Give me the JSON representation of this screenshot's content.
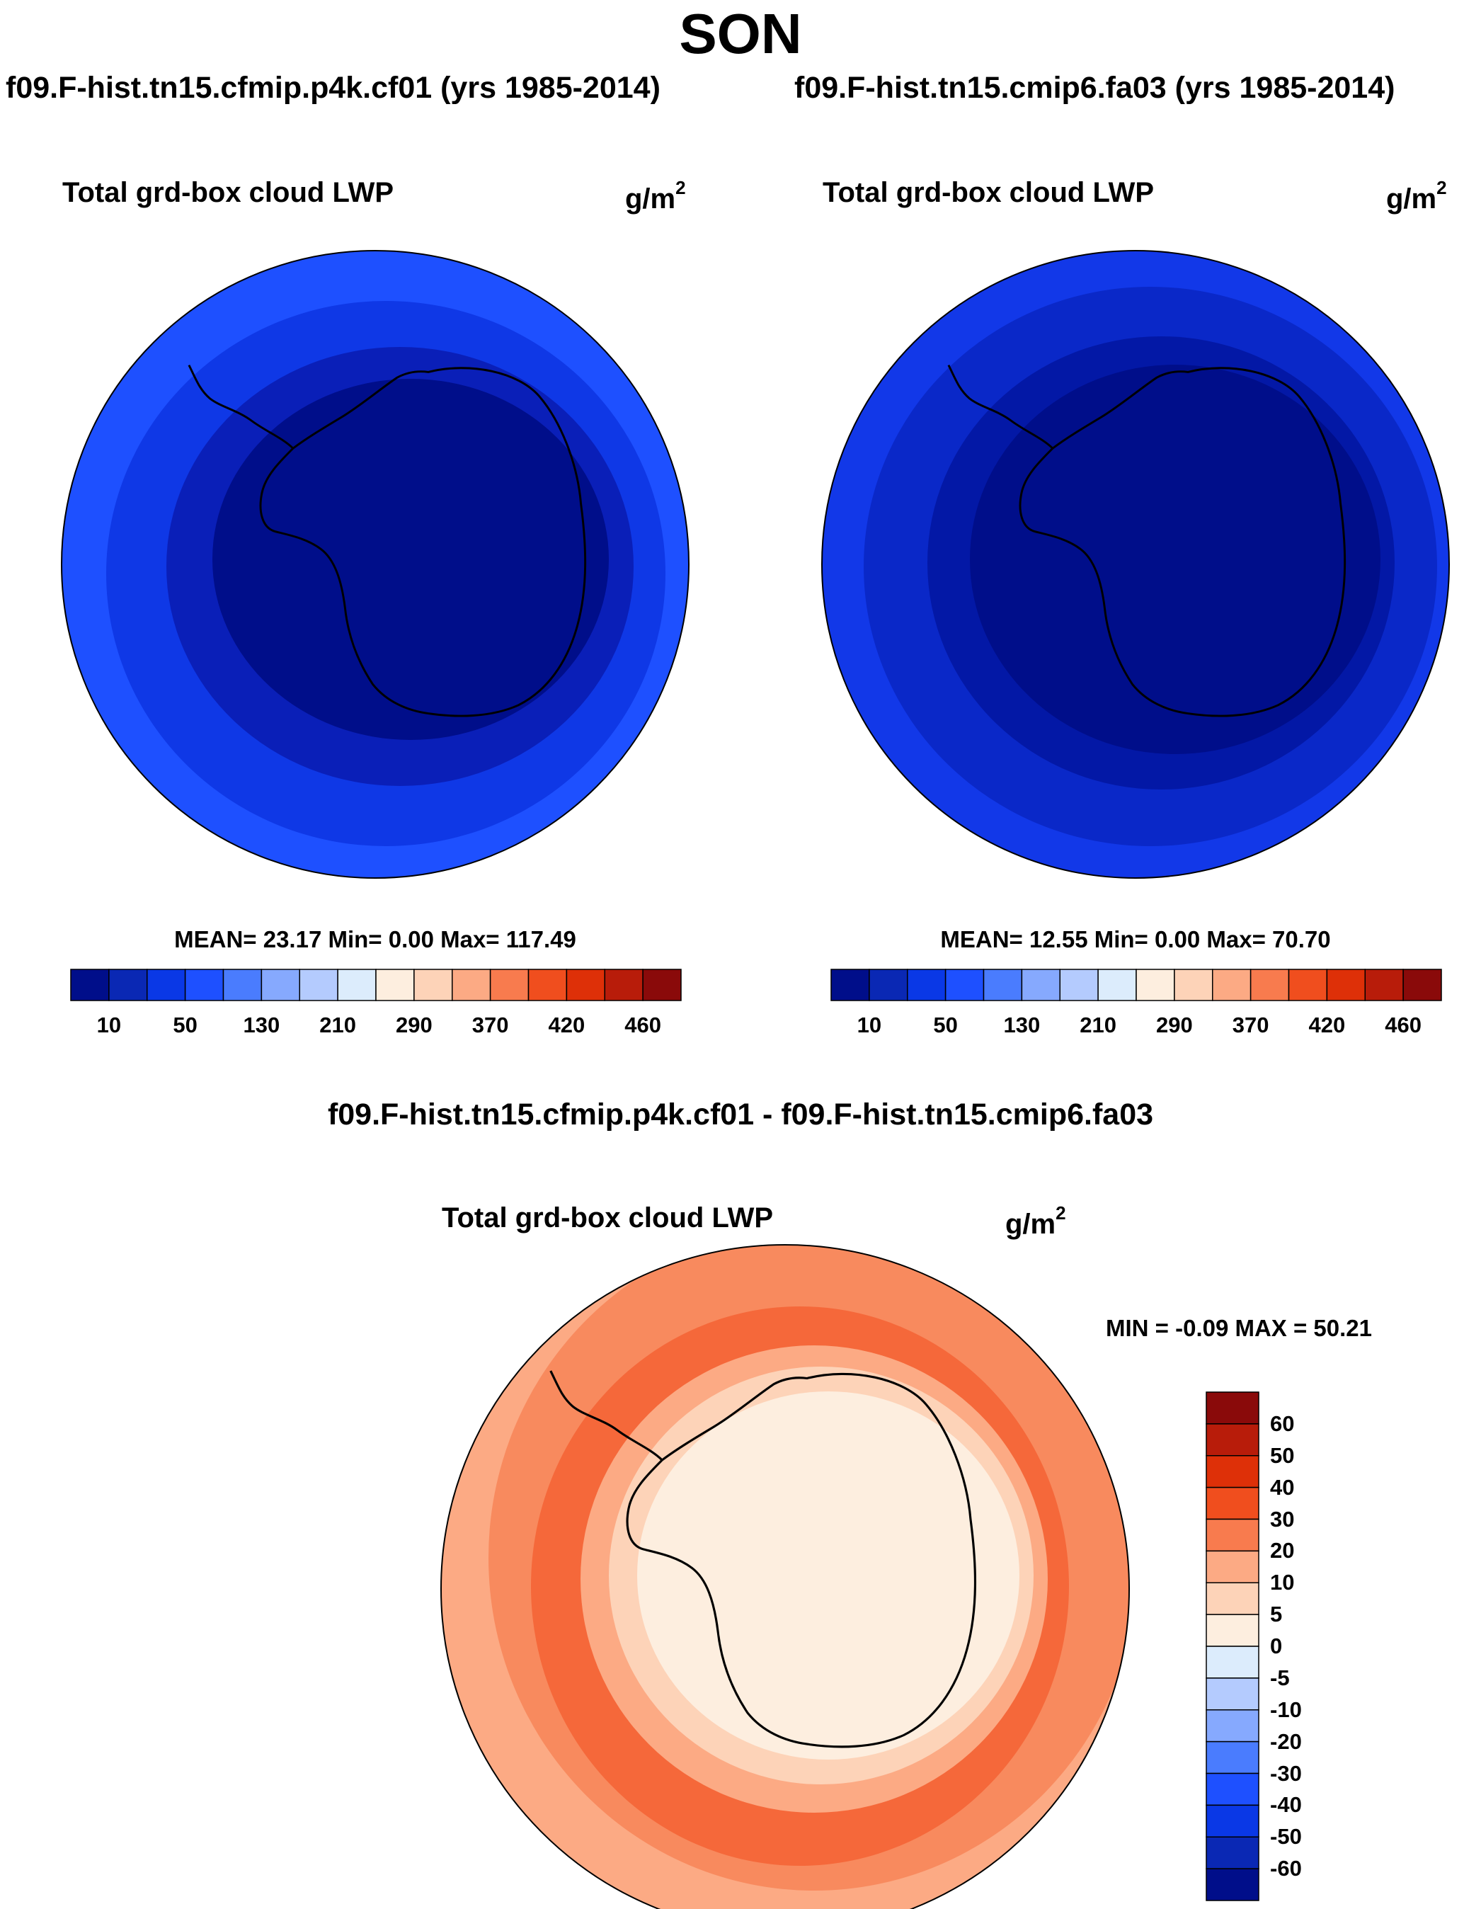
{
  "season": "SON",
  "panels": [
    {
      "case_title": "f09.F-hist.tn15.cfmip.p4k.cf01 (yrs 1985-2014)",
      "variable": "Total grd-box cloud LWP",
      "units_base": "g/m",
      "units_exp": "2",
      "stats_text": "MEAN=  23.17  Min=   0.00  Max= 117.49",
      "stats": {
        "mean": 23.17,
        "min": 0.0,
        "max": 117.49
      },
      "colorbar_labels": [
        "10",
        "50",
        "130",
        "210",
        "290",
        "370",
        "420",
        "460"
      ],
      "field_bands": [
        "#1e50ff",
        "#0f38e6",
        "#0a1fb8",
        "#000e8a"
      ]
    },
    {
      "case_title": "f09.F-hist.tn15.cmip6.fa03 (yrs 1985-2014)",
      "variable": "Total grd-box cloud LWP",
      "units_base": "g/m",
      "units_exp": "2",
      "stats_text": "MEAN=  12.55  Min=   0.00  Max=  70.70",
      "stats": {
        "mean": 12.55,
        "min": 0.0,
        "max": 70.7
      },
      "colorbar_labels": [
        "10",
        "50",
        "130",
        "210",
        "290",
        "370",
        "420",
        "460"
      ],
      "field_bands": [
        "#1238e8",
        "#0a28c8",
        "#0318a6",
        "#000e8a"
      ]
    }
  ],
  "difference": {
    "title": "f09.F-hist.tn15.cfmip.p4k.cf01 - f09.F-hist.tn15.cmip6.fa03",
    "variable": "Total grd-box cloud LWP",
    "units_base": "g/m",
    "units_exp": "2",
    "stats_text": "MIN =  -0.09 MAX =  50.21",
    "stats": {
      "min": -0.09,
      "max": 50.21
    },
    "colorbar_labels": [
      "60",
      "50",
      "40",
      "30",
      "20",
      "10",
      "5",
      "0",
      "-5",
      "-10",
      "-20",
      "-30",
      "-40",
      "-50",
      "-60"
    ],
    "field_bands": [
      "#f88a5e",
      "#f5683a",
      "#fcaa84",
      "#fdd3b8",
      "#fdeedf"
    ]
  },
  "abs_colorbar_colors": [
    "#000e8a",
    "#0a28b4",
    "#0a38e6",
    "#1e50ff",
    "#4a7cfe",
    "#86a9fe",
    "#b4cbfe",
    "#dcecfc",
    "#fdeedf",
    "#fdd3b8",
    "#fcaa84",
    "#f87b4e",
    "#f04e1e",
    "#de3008",
    "#b81c0a",
    "#8a0a0a"
  ],
  "diff_colorbar_colors": [
    "#8a0a0a",
    "#b81c0a",
    "#de3008",
    "#f04e1e",
    "#f87b4e",
    "#fcaa84",
    "#fdd3b8",
    "#fdeedf",
    "#dcecfc",
    "#b4cbfe",
    "#86a9fe",
    "#4a7cfe",
    "#1e50ff",
    "#0a38e6",
    "#0a28b4",
    "#000e8a"
  ],
  "coastline_color": "#000000"
}
